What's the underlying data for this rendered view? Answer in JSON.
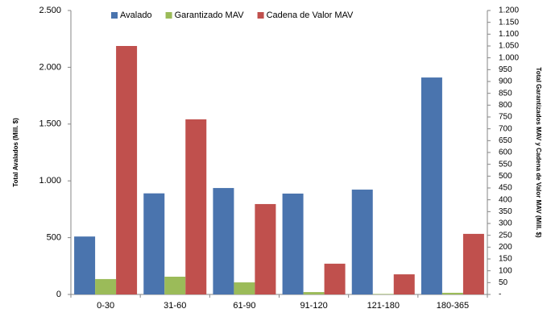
{
  "chart_data": {
    "type": "bar",
    "y_label": "Total Avalados (Mill. $)",
    "y2_label": "Total Garantizados MAV y Cadena de Valor MAV (Mill. $)",
    "categories": [
      "0-30",
      "31-60",
      "61-90",
      "91-120",
      "121-180",
      "180-365"
    ],
    "series": [
      {
        "name": "Avalado",
        "color": "#4a74ae",
        "values": [
          510,
          890,
          937,
          888,
          923,
          1910
        ]
      },
      {
        "name": "Garantizado MAV",
        "color": "#9bbb59",
        "axis": "y2",
        "values": [
          65,
          75,
          51,
          10,
          2,
          7
        ]
      },
      {
        "name": "Cadena de Valor MAV",
        "color": "#c0504d",
        "axis": "y2",
        "values": [
          1050,
          740,
          382,
          130,
          85,
          256
        ]
      }
    ],
    "ylim": [
      0,
      2500
    ],
    "yticks": [
      0,
      500,
      {
        "value": 1000,
        "label": "1.000"
      },
      {
        "value": 1500,
        "label": "1.500"
      },
      {
        "value": 2000,
        "label": "2.000"
      },
      {
        "value": 2500,
        "label": "2.500"
      }
    ],
    "y2lim": [
      0,
      1200
    ],
    "y2ticks": [
      {
        "value": 0,
        "label": "-"
      },
      50,
      100,
      150,
      200,
      250,
      300,
      350,
      400,
      450,
      500,
      550,
      600,
      650,
      700,
      750,
      800,
      850,
      900,
      950,
      {
        "value": 1000,
        "label": "1.000"
      },
      {
        "value": 1050,
        "label": "1.050"
      },
      {
        "value": 1100,
        "label": "1.100"
      },
      {
        "value": 1150,
        "label": "1.150"
      },
      {
        "value": 1200,
        "label": "1.200"
      }
    ],
    "legend": "top"
  }
}
